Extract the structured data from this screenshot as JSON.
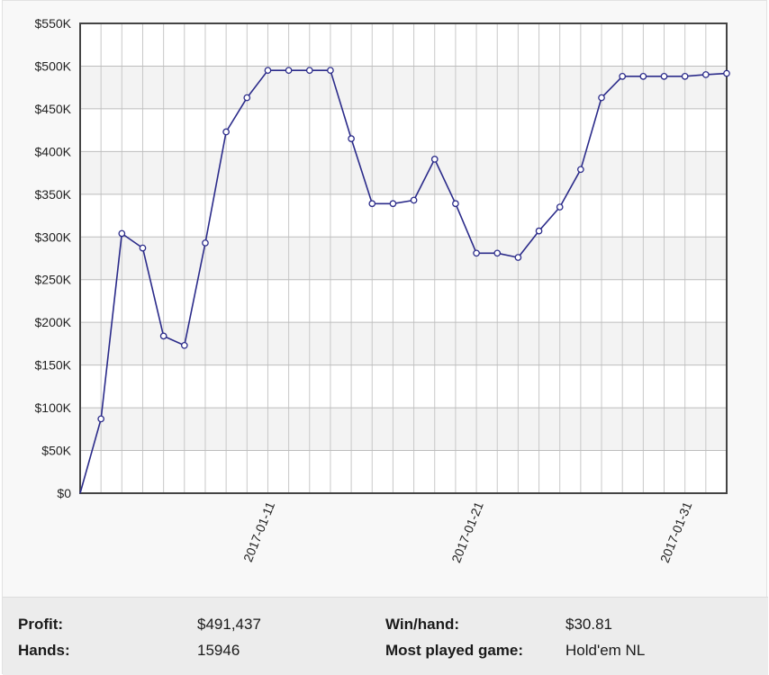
{
  "chart_data": {
    "type": "line",
    "y_tick_labels": [
      "$0",
      "$50K",
      "$100K",
      "$150K",
      "$200K",
      "$250K",
      "$300K",
      "$350K",
      "$400K",
      "$450K",
      "$500K",
      "$550K"
    ],
    "ylim": [
      0,
      550000
    ],
    "x_tick_labels": [
      {
        "label": "2017-01-11",
        "index": 9
      },
      {
        "label": "2017-01-21",
        "index": 19
      },
      {
        "label": "2017-01-31",
        "index": 29
      }
    ],
    "grid": true,
    "series": [
      {
        "color": "#2b2b8a",
        "values": [
          0,
          87000,
          304000,
          287000,
          184000,
          173000,
          293000,
          423000,
          463000,
          495000,
          495000,
          495000,
          495000,
          415000,
          339000,
          339000,
          343000,
          391000,
          339000,
          281000,
          281000,
          276000,
          307000,
          335000,
          379000,
          463000,
          488000,
          488000,
          488000,
          488000,
          490000,
          491437
        ]
      }
    ]
  },
  "stats": {
    "profit_label": "Profit:",
    "profit_value": "$491,437",
    "hands_label": "Hands:",
    "hands_value": "15946",
    "winhand_label": "Win/hand:",
    "winhand_value": "$30.81",
    "game_label": "Most played game:",
    "game_value": "Hold'em NL"
  }
}
